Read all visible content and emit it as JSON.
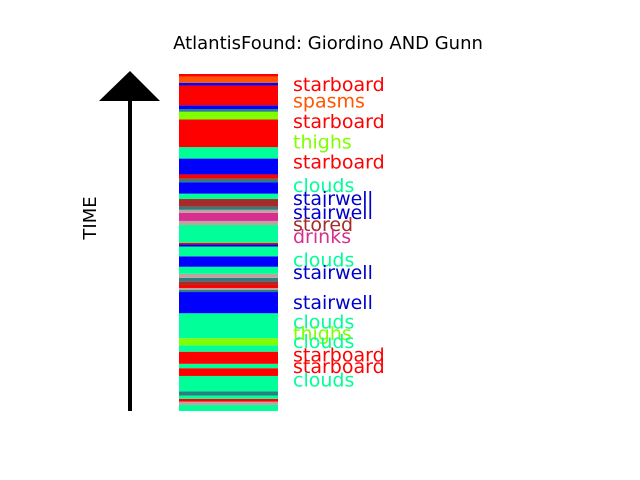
{
  "chart_data": {
    "type": "bar",
    "title": "AtlantisFound: Giordino AND Gunn",
    "xlabel": "",
    "ylabel": "TIME",
    "ylim": [
      0,
      100
    ],
    "colors": {
      "starboard": "#ff0000",
      "spasms": "#ff5500",
      "thighs": "#80ff00",
      "clouds": "#00ff99",
      "stairwell": "#0000ff",
      "stored": "#a52a2a",
      "drinks": "#d62f8f",
      "minor_teal": "#2a8080",
      "minor_pink": "#c0a0a0"
    },
    "segments": [
      {
        "start": 0.0,
        "end": 1.8,
        "label": "clouds"
      },
      {
        "start": 1.8,
        "end": 2.8,
        "label": "minor_pink"
      },
      {
        "start": 2.8,
        "end": 3.6,
        "label": "starboard"
      },
      {
        "start": 3.6,
        "end": 4.6,
        "label": "clouds"
      },
      {
        "start": 4.6,
        "end": 5.8,
        "label": "minor_teal"
      },
      {
        "start": 5.8,
        "end": 10.4,
        "label": "clouds"
      },
      {
        "start": 10.4,
        "end": 12.7,
        "label": "starboard"
      },
      {
        "start": 12.7,
        "end": 14.0,
        "label": "clouds"
      },
      {
        "start": 14.0,
        "end": 17.6,
        "label": "starboard"
      },
      {
        "start": 17.6,
        "end": 19.5,
        "label": "clouds"
      },
      {
        "start": 19.5,
        "end": 21.6,
        "label": "thighs"
      },
      {
        "start": 21.6,
        "end": 29.0,
        "label": "clouds"
      },
      {
        "start": 29.0,
        "end": 35.3,
        "label": "stairwell"
      },
      {
        "start": 35.3,
        "end": 35.9,
        "label": "minor_teal"
      },
      {
        "start": 35.9,
        "end": 36.5,
        "label": "minor_pink"
      },
      {
        "start": 36.5,
        "end": 37.4,
        "label": "starboard"
      },
      {
        "start": 37.4,
        "end": 38.5,
        "label": "stored"
      },
      {
        "start": 38.5,
        "end": 39.5,
        "label": "minor_teal"
      },
      {
        "start": 39.5,
        "end": 40.7,
        "label": "minor_pink"
      },
      {
        "start": 40.7,
        "end": 42.8,
        "label": "clouds"
      },
      {
        "start": 42.8,
        "end": 45.9,
        "label": "stairwell"
      },
      {
        "start": 45.9,
        "end": 48.8,
        "label": "clouds"
      },
      {
        "start": 48.8,
        "end": 49.4,
        "label": "stairwell"
      },
      {
        "start": 49.4,
        "end": 49.9,
        "label": "starboard"
      },
      {
        "start": 49.9,
        "end": 55.2,
        "label": "clouds"
      },
      {
        "start": 55.2,
        "end": 56.4,
        "label": "minor_pink"
      },
      {
        "start": 56.4,
        "end": 58.8,
        "label": "drinks"
      },
      {
        "start": 58.8,
        "end": 59.7,
        "label": "minor_pink"
      },
      {
        "start": 59.7,
        "end": 60.6,
        "label": "minor_teal"
      },
      {
        "start": 60.6,
        "end": 62.9,
        "label": "stored"
      },
      {
        "start": 62.9,
        "end": 64.5,
        "label": "clouds"
      },
      {
        "start": 64.5,
        "end": 67.9,
        "label": "stairwell"
      },
      {
        "start": 67.9,
        "end": 68.9,
        "label": "minor_teal"
      },
      {
        "start": 68.9,
        "end": 70.2,
        "label": "starboard"
      },
      {
        "start": 70.2,
        "end": 74.9,
        "label": "stairwell"
      },
      {
        "start": 74.9,
        "end": 78.3,
        "label": "clouds"
      },
      {
        "start": 78.3,
        "end": 86.5,
        "label": "starboard"
      },
      {
        "start": 86.5,
        "end": 88.8,
        "label": "thighs"
      },
      {
        "start": 88.8,
        "end": 89.6,
        "label": "minor_teal"
      },
      {
        "start": 89.6,
        "end": 90.7,
        "label": "stairwell"
      },
      {
        "start": 90.7,
        "end": 96.6,
        "label": "starboard"
      },
      {
        "start": 96.6,
        "end": 97.4,
        "label": "stairwell"
      },
      {
        "start": 97.4,
        "end": 99.2,
        "label": "spasms"
      },
      {
        "start": 99.2,
        "end": 100.0,
        "label": "starboard"
      }
    ],
    "annotations": [
      {
        "text": "starboard",
        "y": 97.0,
        "color": "#ff0000"
      },
      {
        "text": "spasms",
        "y": 92.2,
        "color": "#ff5500"
      },
      {
        "text": "starboard",
        "y": 86.0,
        "color": "#ff0000"
      },
      {
        "text": "thighs",
        "y": 80.0,
        "color": "#80ff00"
      },
      {
        "text": "starboard",
        "y": 74.0,
        "color": "#ff0000"
      },
      {
        "text": "clouds",
        "y": 67.1,
        "color": "#00ff99"
      },
      {
        "text": "stairwell",
        "y": 63.2,
        "color": "#0000cc"
      },
      {
        "text": "stairwell",
        "y": 59.0,
        "color": "#0000cc"
      },
      {
        "text": "stored",
        "y": 55.5,
        "color": "#a52a2a"
      },
      {
        "text": "drinks",
        "y": 52.0,
        "color": "#d62f8f"
      },
      {
        "text": "clouds",
        "y": 45.0,
        "color": "#00ff99"
      },
      {
        "text": "stairwell",
        "y": 41.3,
        "color": "#0000cc"
      },
      {
        "text": "stairwell",
        "y": 32.4,
        "color": "#0000cc"
      },
      {
        "text": "clouds",
        "y": 26.5,
        "color": "#00ff99"
      },
      {
        "text": "thighs",
        "y": 23.2,
        "color": "#80ff00"
      },
      {
        "text": "clouds",
        "y": 20.8,
        "color": "#00ff99"
      },
      {
        "text": "starboard",
        "y": 16.8,
        "color": "#ff0000"
      },
      {
        "text": "starboard",
        "y": 13.3,
        "color": "#ff0000"
      },
      {
        "text": "clouds",
        "y": 9.4,
        "color": "#00ff99"
      }
    ]
  }
}
